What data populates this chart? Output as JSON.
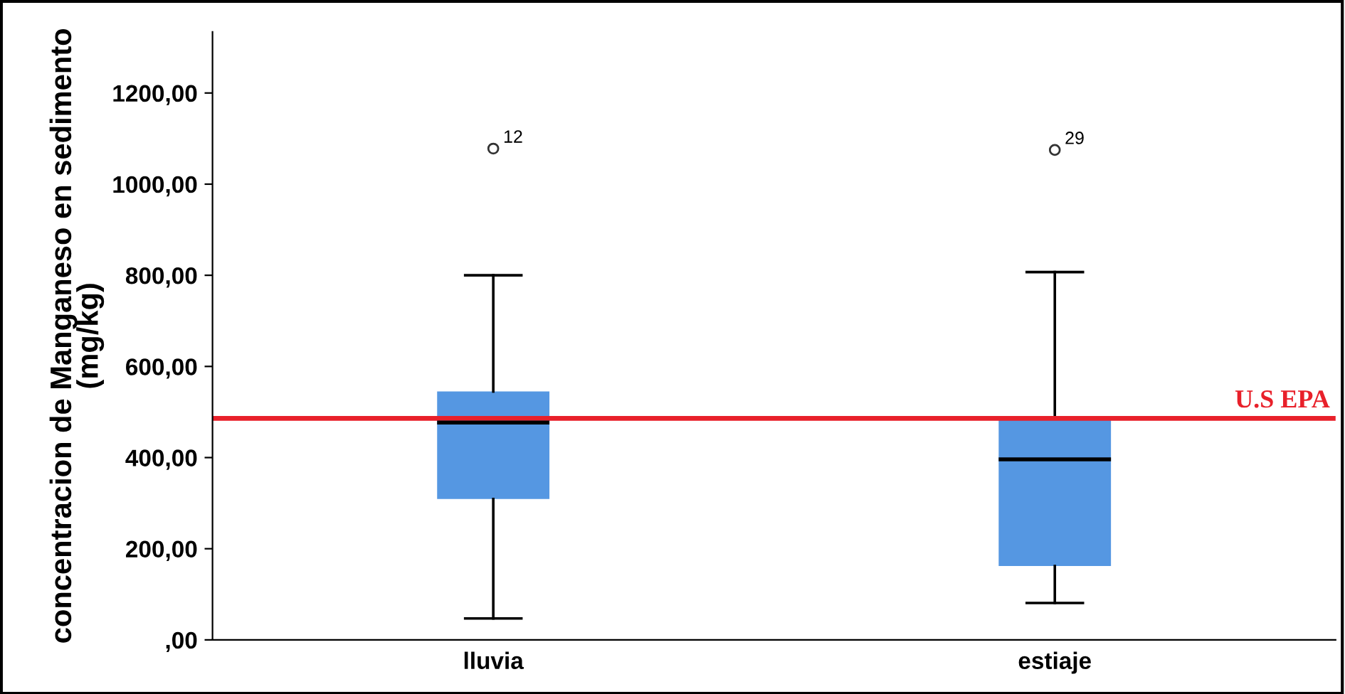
{
  "chart_data": {
    "type": "box",
    "ylabel": "concentracion de Manganeso en sedimento\n(mg/kg)",
    "categories": [
      "lluvia",
      "estiaje"
    ],
    "boxes": [
      {
        "low": 47,
        "q1": 309,
        "median": 477,
        "q3": 545,
        "high": 800,
        "outliers": [
          1078
        ]
      },
      {
        "low": 81,
        "q1": 162,
        "median": 396,
        "q3": 489,
        "high": 807,
        "outliers": [
          1075
        ]
      }
    ],
    "colors": [
      "#5597e2",
      "#5597e2"
    ],
    "ylim": [
      0,
      1334
    ],
    "yticks": [
      {
        "value": 0,
        "label": ",00"
      },
      {
        "value": 200,
        "label": "200,00"
      },
      {
        "value": 400,
        "label": "400,00"
      },
      {
        "value": 600,
        "label": "600,00"
      },
      {
        "value": 800,
        "label": "800,00"
      },
      {
        "value": 1000,
        "label": "1000,00"
      },
      {
        "value": 1200,
        "label": "1200,00"
      }
    ],
    "ref_lines": [
      {
        "axis": "y",
        "value": 486,
        "label": "U.S EPA",
        "color": "#e8202a"
      }
    ],
    "annotations": [
      "12",
      "29"
    ],
    "grid": false,
    "legend": false
  }
}
